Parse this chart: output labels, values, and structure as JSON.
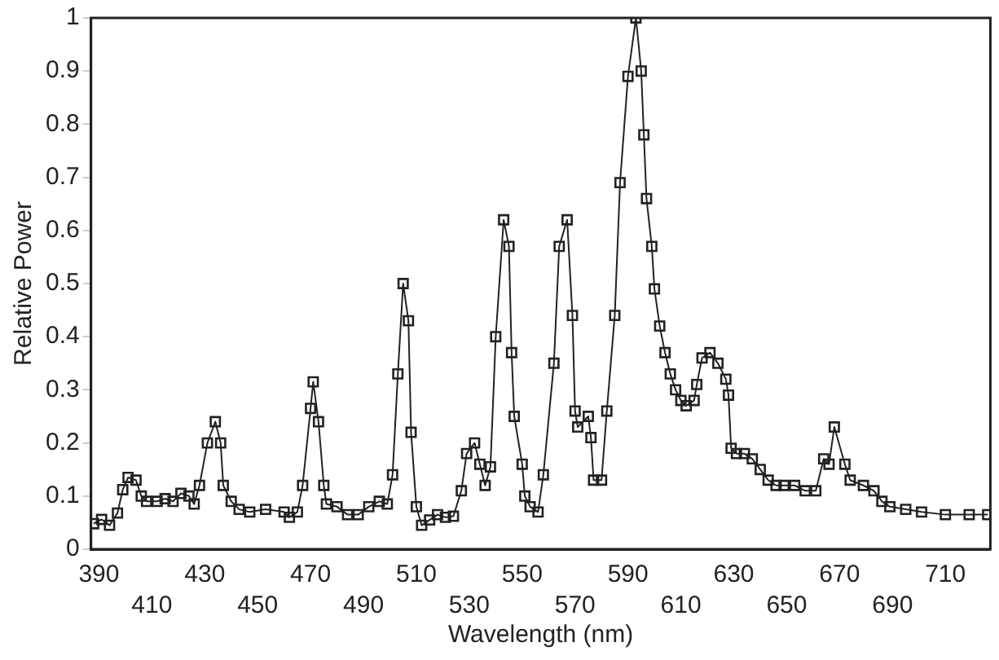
{
  "chart_data": {
    "type": "line",
    "xlabel": "Wavelength (nm)",
    "ylabel": "Relative Power",
    "xlim": [
      387,
      727
    ],
    "xticks": [
      390,
      430,
      470,
      510,
      550,
      590,
      630,
      670,
      710
    ],
    "x2lim": [
      387,
      727
    ],
    "x2ticks": [
      410,
      450,
      490,
      530,
      570,
      610,
      650,
      690
    ],
    "ylim": [
      0,
      1
    ],
    "yticks": [
      0,
      0.1,
      0.2,
      0.3,
      0.4,
      0.5,
      0.6,
      0.7,
      0.8,
      0.9,
      1
    ],
    "grid": false,
    "legend": false,
    "marker": "square",
    "line_style": "solid",
    "x": [
      388,
      391,
      394,
      397,
      399,
      401,
      404,
      406,
      408,
      412,
      415,
      418,
      421,
      424,
      426,
      428,
      431,
      434,
      436,
      437,
      440,
      443,
      447,
      453,
      460,
      462,
      465,
      467,
      470,
      471,
      473,
      475,
      476,
      480,
      484,
      488,
      492,
      496,
      499,
      501,
      503,
      505,
      507,
      508,
      510,
      512,
      515,
      518,
      521,
      524,
      527,
      529,
      532,
      534,
      536,
      538,
      540,
      543,
      545,
      546,
      547,
      550,
      551,
      553,
      556,
      558,
      562,
      564,
      567,
      569,
      570,
      571,
      575,
      576,
      577,
      580,
      582,
      585,
      587,
      590,
      593,
      595,
      596,
      597,
      599,
      600,
      602,
      604,
      606,
      608,
      610,
      612,
      615,
      616,
      618,
      621,
      624,
      627,
      628,
      629,
      631,
      634,
      637,
      640,
      643,
      646,
      649,
      653,
      657,
      661,
      664,
      666,
      668,
      672,
      674,
      679,
      683,
      686,
      689,
      695,
      701,
      710,
      719,
      726
    ],
    "series": [
      {
        "color": "#222222",
        "values": [
          0.048,
          0.056,
          0.045,
          0.068,
          0.112,
          0.135,
          0.13,
          0.1,
          0.09,
          0.09,
          0.095,
          0.09,
          0.105,
          0.1,
          0.085,
          0.12,
          0.2,
          0.24,
          0.2,
          0.12,
          0.09,
          0.075,
          0.07,
          0.075,
          0.07,
          0.06,
          0.07,
          0.12,
          0.265,
          0.315,
          0.24,
          0.12,
          0.085,
          0.08,
          0.065,
          0.065,
          0.08,
          0.09,
          0.085,
          0.14,
          0.33,
          0.5,
          0.43,
          0.22,
          0.08,
          0.045,
          0.055,
          0.065,
          0.06,
          0.062,
          0.11,
          0.18,
          0.2,
          0.16,
          0.12,
          0.155,
          0.4,
          0.62,
          0.57,
          0.37,
          0.25,
          0.16,
          0.1,
          0.08,
          0.07,
          0.14,
          0.35,
          0.57,
          0.62,
          0.44,
          0.26,
          0.23,
          0.25,
          0.21,
          0.13,
          0.13,
          0.26,
          0.44,
          0.69,
          0.89,
          1.0,
          0.9,
          0.78,
          0.66,
          0.57,
          0.49,
          0.42,
          0.37,
          0.33,
          0.3,
          0.28,
          0.27,
          0.28,
          0.31,
          0.36,
          0.37,
          0.35,
          0.32,
          0.29,
          0.19,
          0.18,
          0.18,
          0.17,
          0.15,
          0.13,
          0.12,
          0.12,
          0.12,
          0.11,
          0.11,
          0.17,
          0.16,
          0.23,
          0.16,
          0.13,
          0.12,
          0.11,
          0.09,
          0.08,
          0.075,
          0.07,
          0.065,
          0.065,
          0.065
        ]
      }
    ]
  }
}
